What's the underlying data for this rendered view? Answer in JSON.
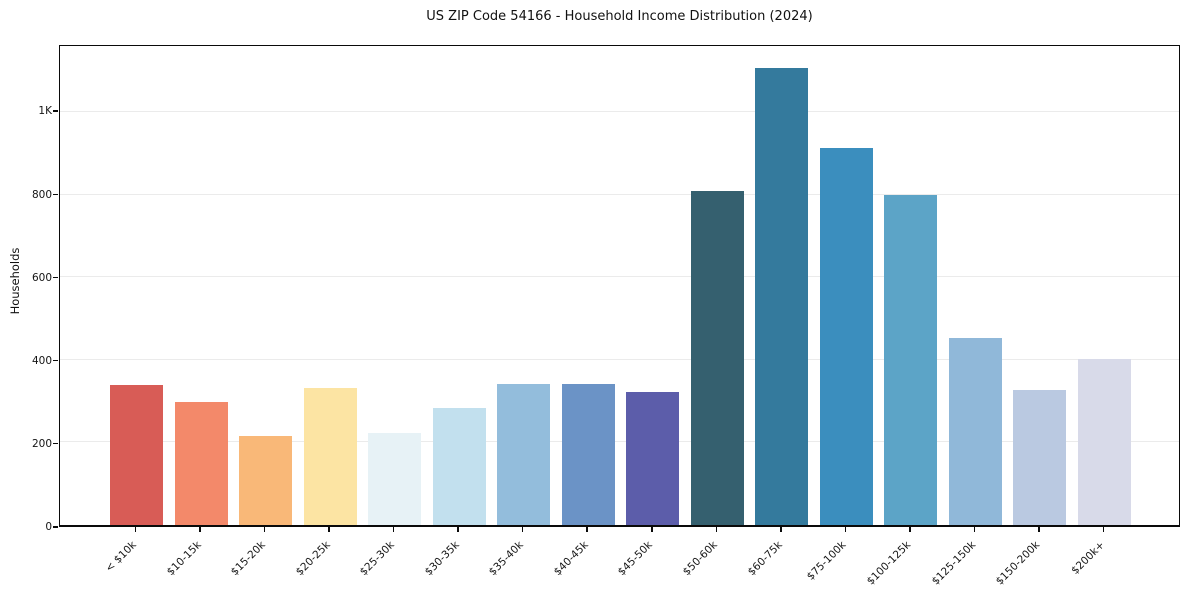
{
  "chart_data": {
    "type": "bar",
    "title": "US ZIP Code 54166 - Household Income Distribution (2024)",
    "xlabel": "",
    "ylabel": "Households",
    "ylim": [
      0,
      1160
    ],
    "grid": "horizontal",
    "legend": "none",
    "background_color": "#ffffff",
    "gridline_color": "#ebebeb",
    "spine_color": "#0a0a0a",
    "categories": [
      "< $10k",
      "$10-15k",
      "$15-20k",
      "$20-25k",
      "$25-30k",
      "$30-35k",
      "$35-40k",
      "$40-45k",
      "$45-50k",
      "$50-60k",
      "$60-75k",
      "$75-100k",
      "$100-125k",
      "$125-150k",
      "$150-200k",
      "$200k+"
    ],
    "values": [
      338,
      298,
      216,
      331,
      223,
      284,
      342,
      342,
      323,
      809,
      1107,
      913,
      799,
      452,
      327,
      402
    ],
    "bar_colors": [
      "#d85c56",
      "#f3896a",
      "#f9b878",
      "#fce4a3",
      "#e7f2f6",
      "#c2e0ee",
      "#93bddc",
      "#6b93c6",
      "#5c5daa",
      "#35606f",
      "#347a9d",
      "#3b8ebe",
      "#5ca4c7",
      "#90b8d9",
      "#bac9e1",
      "#d8dae9"
    ],
    "yticks": [
      {
        "value": 0,
        "label": "0"
      },
      {
        "value": 200,
        "label": "200"
      },
      {
        "value": 400,
        "label": "400"
      },
      {
        "value": 600,
        "label": "600"
      },
      {
        "value": 800,
        "label": "800"
      },
      {
        "value": 1000,
        "label": "1K"
      }
    ]
  }
}
